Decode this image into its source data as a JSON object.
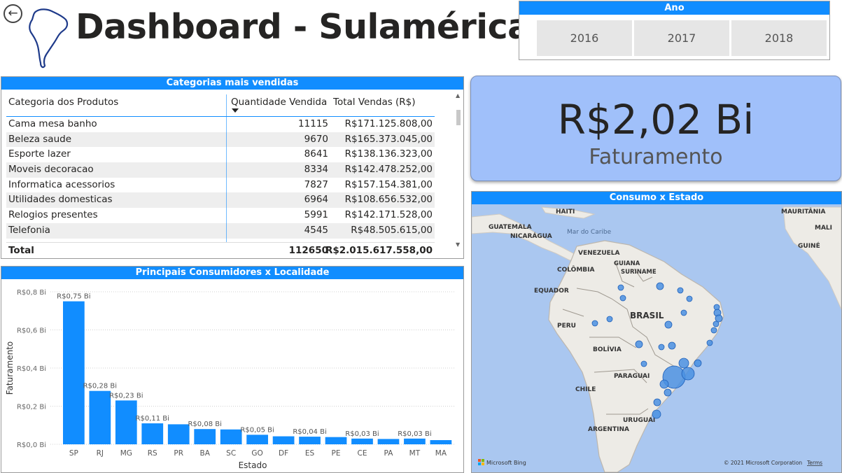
{
  "header": {
    "back_icon": "arrow-left-circle-icon",
    "logo_icon": "south-america-outline-icon",
    "title": "Dashboard - Sulamérica"
  },
  "year_slicer": {
    "title": "Ano",
    "options": [
      "2016",
      "2017",
      "2018"
    ]
  },
  "top_categories": {
    "title": "Categorias mais vendidas",
    "columns": [
      "Categoria dos Produtos",
      "Quantidade Vendida",
      "Total Vendas (R$)"
    ],
    "sorted_by": "Quantidade Vendida",
    "rows": [
      [
        "Cama mesa banho",
        "11115",
        "R$171.125.808,00"
      ],
      [
        "Beleza saude",
        "9670",
        "R$165.373.045,00"
      ],
      [
        "Esporte lazer",
        "8641",
        "R$138.136.323,00"
      ],
      [
        "Moveis decoracao",
        "8334",
        "R$142.478.252,00"
      ],
      [
        "Informatica acessorios",
        "7827",
        "R$157.154.381,00"
      ],
      [
        "Utilidades domesticas",
        "6964",
        "R$108.656.532,00"
      ],
      [
        "Relogios presentes",
        "5991",
        "R$142.171.528,00"
      ],
      [
        "Telefonia",
        "4545",
        "R$48.505.615,00"
      ]
    ],
    "total": [
      "Total",
      "112650",
      "R$2.015.617.558,00"
    ]
  },
  "kpi": {
    "value": "R$2,02 Bi",
    "label": "Faturamento",
    "color": "#A0C0FA"
  },
  "bar_chart": {
    "title": "Principais Consumidores x Localidade",
    "accent": "#118DFF"
  },
  "map": {
    "title": "Consumo x Estado",
    "labels": {
      "haiti": "HAITI",
      "mauritania": "MAURITÂNIA",
      "guatemala": "GUATEMALA",
      "nicaragua": "NICARÁGUA",
      "caribbean": "Mar do Caribe",
      "venezuela": "VENEZUELA",
      "guiana": "GUIANA",
      "colombia": "COLÔMBIA",
      "suriname": "SURINAME",
      "ecuador": "EQUADOR",
      "brasil": "BRASIL",
      "peru": "PERU",
      "bolivia": "BOLÍVIA",
      "paraguay": "PARAGUAI",
      "chile": "CHILE",
      "uruguay": "URUGUAI",
      "argentina": "ARGENTINA",
      "mali": "MALI",
      "guine": "GUINÉ"
    },
    "brand": "Microsoft Bing",
    "copyright": "© 2021 Microsoft Corporation",
    "terms": "Terms",
    "water_color": "#AAC7F0",
    "land_color": "#EDEBE6",
    "bubble_color": "#4A90E2"
  },
  "chart_data": {
    "type": "bar",
    "categories": [
      "SP",
      "RJ",
      "MG",
      "RS",
      "PR",
      "BA",
      "SC",
      "GO",
      "DF",
      "ES",
      "PE",
      "CE",
      "PA",
      "MT",
      "MA"
    ],
    "values": [
      0.75,
      0.28,
      0.23,
      0.11,
      0.105,
      0.08,
      0.078,
      0.05,
      0.042,
      0.04,
      0.038,
      0.03,
      0.028,
      0.03,
      0.022
    ],
    "data_labels": [
      "R$0,75 Bi",
      "R$0,28 Bi",
      "R$0,23 Bi",
      "R$0,11 Bi",
      "",
      "R$0,08 Bi",
      "",
      "R$0,05 Bi",
      "",
      "R$0,04 Bi",
      "",
      "R$0,03 Bi",
      "",
      "R$0,03 Bi",
      ""
    ],
    "xlabel": "Estado",
    "ylabel": "Faturamento",
    "ylim": [
      0,
      0.8
    ],
    "yticks": [
      0,
      0.2,
      0.4,
      0.6,
      0.8
    ],
    "ytick_labels": [
      "R$0,0 Bi",
      "R$0,2 Bi",
      "R$0,4 Bi",
      "R$0,6 Bi",
      "R$0,8 Bi"
    ],
    "grid": true,
    "legend": "none"
  }
}
